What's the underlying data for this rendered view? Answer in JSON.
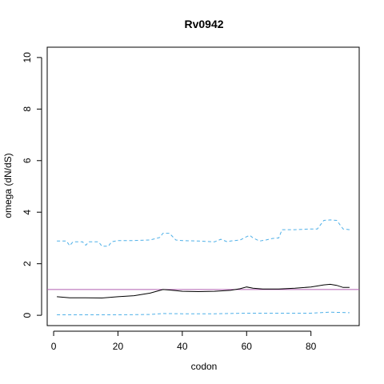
{
  "chart_data": {
    "type": "line",
    "title": "Rv0942",
    "xlabel": "codon",
    "ylabel": "omega (dN/dS)",
    "xlim": [
      -2,
      95
    ],
    "ylim": [
      -0.4,
      10.4
    ],
    "xticks": [
      0,
      20,
      40,
      60,
      80
    ],
    "yticks": [
      0,
      2,
      4,
      6,
      8,
      10
    ],
    "grid": false,
    "reference_line": {
      "y": 1,
      "color": "#b05fb0"
    },
    "series": [
      {
        "style": "solid",
        "color": "#000000",
        "x": [
          1,
          5,
          10,
          15,
          20,
          25,
          30,
          32,
          34,
          36,
          38,
          40,
          45,
          50,
          55,
          58,
          60,
          62,
          65,
          70,
          75,
          80,
          84,
          86,
          88,
          90,
          92
        ],
        "y": [
          0.72,
          0.68,
          0.68,
          0.67,
          0.72,
          0.76,
          0.86,
          0.93,
          1.0,
          0.98,
          0.96,
          0.93,
          0.92,
          0.93,
          0.97,
          1.03,
          1.1,
          1.05,
          1.02,
          1.02,
          1.05,
          1.1,
          1.18,
          1.2,
          1.16,
          1.08,
          1.08
        ]
      },
      {
        "style": "dashed",
        "color": "#4fb0e8",
        "x": [
          1,
          4,
          5,
          6,
          9,
          10,
          11,
          14,
          15,
          17,
          18,
          20,
          25,
          30,
          33,
          34,
          36,
          38,
          40,
          45,
          50,
          52,
          54,
          55,
          58,
          60,
          61,
          62,
          64,
          66,
          68,
          70,
          71,
          75,
          80,
          82,
          84,
          86,
          88,
          90,
          92
        ],
        "y": [
          2.88,
          2.88,
          2.7,
          2.85,
          2.85,
          2.72,
          2.85,
          2.85,
          2.68,
          2.68,
          2.85,
          2.9,
          2.9,
          2.92,
          3.02,
          3.18,
          3.18,
          2.92,
          2.9,
          2.88,
          2.85,
          2.95,
          2.85,
          2.88,
          2.92,
          3.05,
          3.1,
          3.0,
          2.88,
          2.92,
          2.98,
          3.0,
          3.32,
          3.32,
          3.35,
          3.35,
          3.68,
          3.7,
          3.68,
          3.35,
          3.32
        ]
      },
      {
        "style": "dashed",
        "color": "#4fb0e8",
        "x": [
          1,
          10,
          20,
          30,
          34,
          40,
          50,
          60,
          70,
          80,
          86,
          92
        ],
        "y": [
          0.02,
          0.02,
          0.02,
          0.03,
          0.07,
          0.06,
          0.06,
          0.08,
          0.08,
          0.08,
          0.12,
          0.1
        ]
      }
    ]
  }
}
